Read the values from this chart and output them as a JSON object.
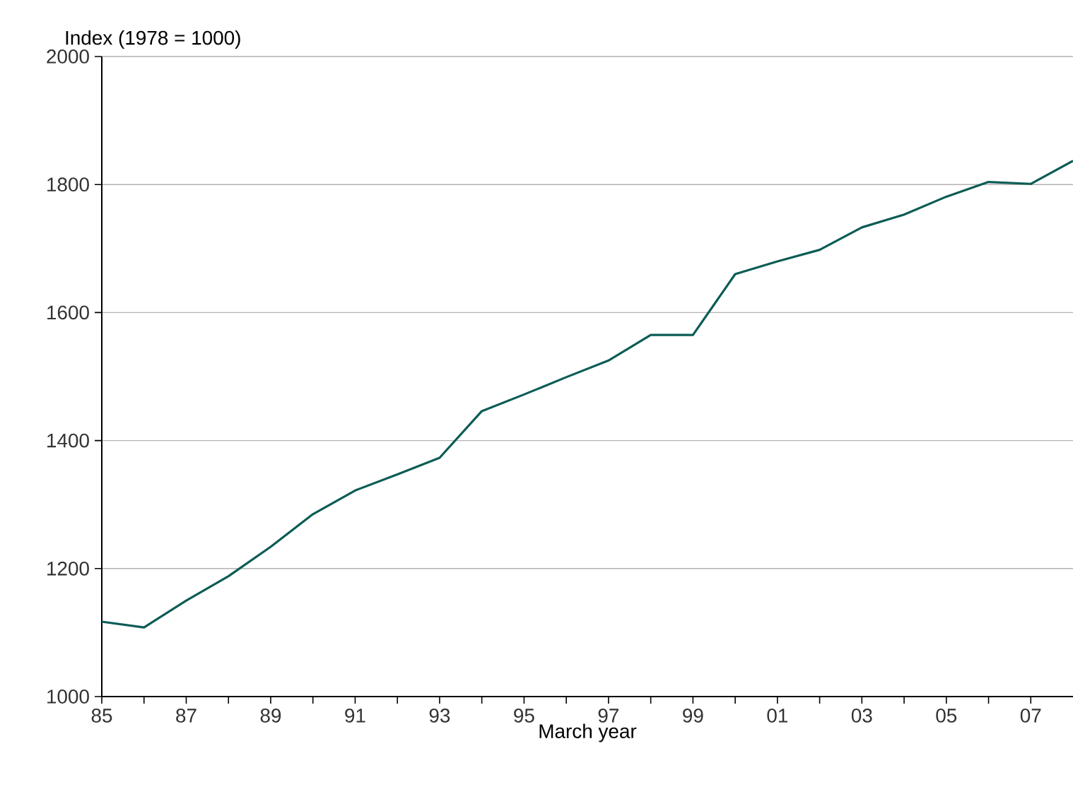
{
  "chart_data": {
    "type": "line",
    "ylabel": "Index (1978 = 1000)",
    "xlabel": "March year",
    "x": [
      1985,
      1986,
      1987,
      1988,
      1989,
      1990,
      1991,
      1992,
      1993,
      1994,
      1995,
      1996,
      1997,
      1998,
      1999,
      2000,
      2001,
      2002,
      2003,
      2004,
      2005,
      2006,
      2007,
      2008
    ],
    "series": [
      {
        "color": "#0b5c55",
        "values": [
          1117,
          1108,
          1150,
          1188,
          1234,
          1285,
          1322,
          1347,
          1373,
          1446,
          1472,
          1499,
          1525,
          1565,
          1565,
          1660,
          1680,
          1698,
          1733,
          1753,
          1781,
          1804,
          1801,
          1837
        ]
      }
    ],
    "xlim": [
      1985,
      2008
    ],
    "xticks": [
      {
        "value": 1985,
        "label": "85"
      },
      {
        "value": 1986,
        "label": null
      },
      {
        "value": 1987,
        "label": "87"
      },
      {
        "value": 1988,
        "label": null
      },
      {
        "value": 1989,
        "label": "89"
      },
      {
        "value": 1990,
        "label": null
      },
      {
        "value": 1991,
        "label": "91"
      },
      {
        "value": 1992,
        "label": null
      },
      {
        "value": 1993,
        "label": "93"
      },
      {
        "value": 1994,
        "label": null
      },
      {
        "value": 1995,
        "label": "95"
      },
      {
        "value": 1996,
        "label": null
      },
      {
        "value": 1997,
        "label": "97"
      },
      {
        "value": 1998,
        "label": null
      },
      {
        "value": 1999,
        "label": "99"
      },
      {
        "value": 2000,
        "label": null
      },
      {
        "value": 2001,
        "label": "01"
      },
      {
        "value": 2002,
        "label": null
      },
      {
        "value": 2003,
        "label": "03"
      },
      {
        "value": 2004,
        "label": null
      },
      {
        "value": 2005,
        "label": "05"
      },
      {
        "value": 2006,
        "label": null
      },
      {
        "value": 2007,
        "label": "07"
      }
    ],
    "ylim": [
      1000,
      2000
    ],
    "yticks": [
      1000,
      1200,
      1400,
      1600,
      1800,
      2000
    ],
    "grid": "y"
  }
}
